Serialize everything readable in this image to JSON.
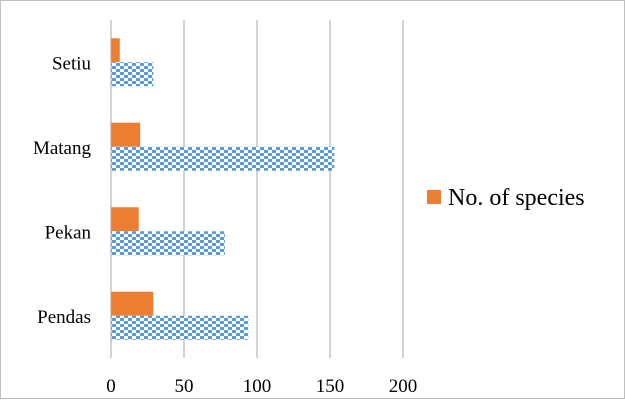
{
  "chart_data": {
    "type": "bar",
    "orientation": "horizontal",
    "categories": [
      "Pendas",
      "Pekan",
      "Matang",
      "Setiu"
    ],
    "series": [
      {
        "name": "",
        "pattern": "blue-checkered",
        "color": "#5b9bd5",
        "values": [
          94,
          78,
          153,
          29
        ]
      },
      {
        "name": "No. of species",
        "pattern": "solid",
        "color": "#ed7d31",
        "values": [
          29,
          19,
          20,
          6
        ]
      }
    ],
    "xlim": [
      0,
      200
    ],
    "xticks": [
      0,
      50,
      100,
      150,
      200
    ],
    "xlabel": "",
    "ylabel": "",
    "title": "",
    "grid": "vertical",
    "legend_placement": "right"
  }
}
